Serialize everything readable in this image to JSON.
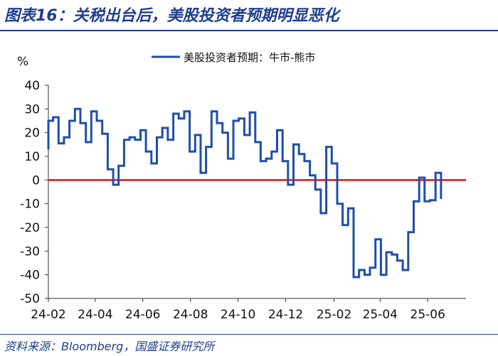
{
  "figure": {
    "title": "图表16：关税出台后，美股投资者预期明显恶化",
    "source": "资料来源：Bloomberg，国盛证券研究所"
  },
  "colors": {
    "series": "#1f4fa8",
    "zero_line": "#e01010",
    "brand": "#1f3e8f"
  },
  "chart_data": {
    "type": "line",
    "ylabel": "%",
    "ylim": [
      -50,
      40
    ],
    "yticks": [
      40,
      30,
      20,
      10,
      0,
      -10,
      -20,
      -30,
      -40,
      -50
    ],
    "xlim": [
      "2024-02-01",
      "2025-07-20"
    ],
    "xticks": [
      "24-02",
      "24-04",
      "24-06",
      "24-08",
      "24-10",
      "24-12",
      "25-02",
      "25-04",
      "25-06"
    ],
    "legend": {
      "position": "top-center"
    },
    "reference_line": {
      "y": 0,
      "color": "#e01010"
    },
    "series": [
      {
        "name": "美股投资者预期：牛市-熊市",
        "color": "#1f4fa8",
        "points": [
          [
            "2024-02-01",
            13
          ],
          [
            "2024-02-01",
            25
          ],
          [
            "2024-02-07",
            25
          ],
          [
            "2024-02-07",
            26.5
          ],
          [
            "2024-02-14",
            26.5
          ],
          [
            "2024-02-14",
            15.5
          ],
          [
            "2024-02-21",
            15.5
          ],
          [
            "2024-02-21",
            18
          ],
          [
            "2024-02-28",
            18
          ],
          [
            "2024-02-28",
            25
          ],
          [
            "2024-03-06",
            25
          ],
          [
            "2024-03-06",
            30
          ],
          [
            "2024-03-13",
            30
          ],
          [
            "2024-03-13",
            24
          ],
          [
            "2024-03-20",
            24
          ],
          [
            "2024-03-20",
            16
          ],
          [
            "2024-03-27",
            16
          ],
          [
            "2024-03-27",
            29
          ],
          [
            "2024-04-03",
            29
          ],
          [
            "2024-04-03",
            25
          ],
          [
            "2024-04-10",
            25
          ],
          [
            "2024-04-10",
            19.5
          ],
          [
            "2024-04-17",
            19.5
          ],
          [
            "2024-04-17",
            4.5
          ],
          [
            "2024-04-24",
            4.5
          ],
          [
            "2024-04-24",
            -2
          ],
          [
            "2024-05-01",
            -2
          ],
          [
            "2024-05-01",
            6
          ],
          [
            "2024-05-08",
            6
          ],
          [
            "2024-05-08",
            17
          ],
          [
            "2024-05-15",
            17
          ],
          [
            "2024-05-15",
            18
          ],
          [
            "2024-05-22",
            18
          ],
          [
            "2024-05-22",
            17
          ],
          [
            "2024-05-29",
            17
          ],
          [
            "2024-05-29",
            21
          ],
          [
            "2024-06-05",
            21
          ],
          [
            "2024-06-05",
            12
          ],
          [
            "2024-06-12",
            12
          ],
          [
            "2024-06-12",
            7
          ],
          [
            "2024-06-19",
            7
          ],
          [
            "2024-06-19",
            18
          ],
          [
            "2024-06-26",
            18
          ],
          [
            "2024-06-26",
            22
          ],
          [
            "2024-07-03",
            22
          ],
          [
            "2024-07-03",
            17
          ],
          [
            "2024-07-10",
            17
          ],
          [
            "2024-07-10",
            28
          ],
          [
            "2024-07-17",
            28
          ],
          [
            "2024-07-17",
            26
          ],
          [
            "2024-07-24",
            26
          ],
          [
            "2024-07-24",
            29
          ],
          [
            "2024-07-31",
            29
          ],
          [
            "2024-07-31",
            12
          ],
          [
            "2024-08-07",
            12
          ],
          [
            "2024-08-07",
            19
          ],
          [
            "2024-08-14",
            19
          ],
          [
            "2024-08-14",
            3
          ],
          [
            "2024-08-21",
            3
          ],
          [
            "2024-08-21",
            14
          ],
          [
            "2024-08-28",
            14
          ],
          [
            "2024-08-28",
            29
          ],
          [
            "2024-09-04",
            29
          ],
          [
            "2024-09-04",
            24
          ],
          [
            "2024-09-11",
            24
          ],
          [
            "2024-09-11",
            20
          ],
          [
            "2024-09-18",
            20
          ],
          [
            "2024-09-18",
            9
          ],
          [
            "2024-09-25",
            9
          ],
          [
            "2024-09-25",
            25
          ],
          [
            "2024-10-02",
            25
          ],
          [
            "2024-10-02",
            26
          ],
          [
            "2024-10-09",
            26
          ],
          [
            "2024-10-09",
            19
          ],
          [
            "2024-10-16",
            19
          ],
          [
            "2024-10-16",
            28.5
          ],
          [
            "2024-10-23",
            28.5
          ],
          [
            "2024-10-23",
            16
          ],
          [
            "2024-10-30",
            16
          ],
          [
            "2024-10-30",
            8
          ],
          [
            "2024-11-06",
            8
          ],
          [
            "2024-11-06",
            9
          ],
          [
            "2024-11-13",
            9
          ],
          [
            "2024-11-13",
            12
          ],
          [
            "2024-11-20",
            12
          ],
          [
            "2024-11-20",
            21
          ],
          [
            "2024-11-27",
            21
          ],
          [
            "2024-11-27",
            8
          ],
          [
            "2024-12-04",
            8
          ],
          [
            "2024-12-04",
            -2
          ],
          [
            "2024-12-11",
            -2
          ],
          [
            "2024-12-11",
            15
          ],
          [
            "2024-12-18",
            15
          ],
          [
            "2024-12-18",
            11
          ],
          [
            "2024-12-25",
            11
          ],
          [
            "2024-12-25",
            8
          ],
          [
            "2025-01-01",
            8
          ],
          [
            "2025-01-01",
            2
          ],
          [
            "2025-01-08",
            2
          ],
          [
            "2025-01-08",
            -4
          ],
          [
            "2025-01-15",
            -4
          ],
          [
            "2025-01-15",
            -14
          ],
          [
            "2025-01-22",
            -14
          ],
          [
            "2025-01-22",
            14
          ],
          [
            "2025-01-29",
            14
          ],
          [
            "2025-01-29",
            7
          ],
          [
            "2025-02-05",
            7
          ],
          [
            "2025-02-05",
            -10
          ],
          [
            "2025-02-12",
            -10
          ],
          [
            "2025-02-12",
            -19
          ],
          [
            "2025-02-19",
            -19
          ],
          [
            "2025-02-19",
            -12
          ],
          [
            "2025-02-26",
            -12
          ],
          [
            "2025-02-26",
            -41
          ],
          [
            "2025-03-05",
            -41
          ],
          [
            "2025-03-05",
            -38
          ],
          [
            "2025-03-12",
            -38
          ],
          [
            "2025-03-12",
            -40
          ],
          [
            "2025-03-19",
            -40
          ],
          [
            "2025-03-19",
            -37
          ],
          [
            "2025-03-26",
            -37
          ],
          [
            "2025-03-26",
            -25
          ],
          [
            "2025-04-02",
            -25
          ],
          [
            "2025-04-02",
            -40
          ],
          [
            "2025-04-09",
            -40
          ],
          [
            "2025-04-09",
            -30.5
          ],
          [
            "2025-04-16",
            -30.5
          ],
          [
            "2025-04-16",
            -31.5
          ],
          [
            "2025-04-23",
            -31.5
          ],
          [
            "2025-04-23",
            -34
          ],
          [
            "2025-04-30",
            -34
          ],
          [
            "2025-04-30",
            -38
          ],
          [
            "2025-05-07",
            -38
          ],
          [
            "2025-05-07",
            -22
          ],
          [
            "2025-05-14",
            -22
          ],
          [
            "2025-05-14",
            -9
          ],
          [
            "2025-05-21",
            -9
          ],
          [
            "2025-05-21",
            1
          ],
          [
            "2025-05-28",
            1
          ],
          [
            "2025-05-28",
            -9
          ],
          [
            "2025-06-04",
            -9
          ],
          [
            "2025-06-04",
            -8.5
          ],
          [
            "2025-06-11",
            -8.5
          ],
          [
            "2025-06-11",
            3
          ],
          [
            "2025-06-18",
            3
          ],
          [
            "2025-06-18",
            -8
          ]
        ]
      }
    ]
  }
}
